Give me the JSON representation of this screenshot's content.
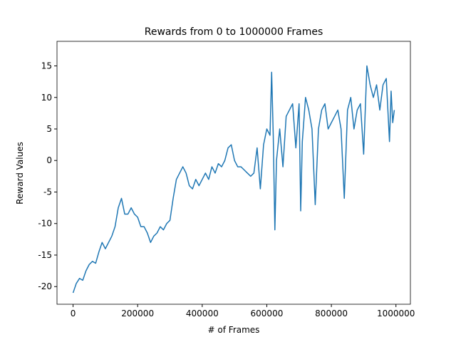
{
  "chart_data": {
    "type": "line",
    "title": "Rewards from 0 to 1000000 Frames",
    "xlabel": "# of Frames",
    "ylabel": "Reward Values",
    "x": [
      0,
      10000,
      20000,
      30000,
      40000,
      50000,
      60000,
      70000,
      80000,
      90000,
      100000,
      110000,
      120000,
      130000,
      140000,
      150000,
      160000,
      170000,
      180000,
      190000,
      200000,
      210000,
      220000,
      230000,
      240000,
      250000,
      260000,
      270000,
      280000,
      290000,
      300000,
      310000,
      320000,
      330000,
      340000,
      350000,
      360000,
      370000,
      380000,
      390000,
      400000,
      410000,
      420000,
      430000,
      440000,
      450000,
      460000,
      470000,
      480000,
      490000,
      500000,
      510000,
      520000,
      530000,
      540000,
      550000,
      560000,
      570000,
      580000,
      590000,
      600000,
      610000,
      615000,
      620000,
      625000,
      630000,
      640000,
      650000,
      660000,
      670000,
      680000,
      690000,
      700000,
      705000,
      710000,
      720000,
      730000,
      740000,
      750000,
      760000,
      770000,
      780000,
      790000,
      800000,
      810000,
      820000,
      830000,
      840000,
      850000,
      860000,
      870000,
      880000,
      890000,
      900000,
      910000,
      920000,
      930000,
      940000,
      950000,
      960000,
      970000,
      980000,
      985000,
      990000,
      995000
    ],
    "series": [
      {
        "name": "Rewards",
        "color": "#1f77b4",
        "values": [
          -21,
          -19.5,
          -18.7,
          -19,
          -17.5,
          -16.5,
          -16,
          -16.3,
          -14.5,
          -13,
          -14,
          -13,
          -12,
          -10.5,
          -7.5,
          -6,
          -8.5,
          -8.5,
          -7.5,
          -8.5,
          -9,
          -10.5,
          -10.5,
          -11.5,
          -13,
          -12,
          -11.5,
          -10.5,
          -11,
          -10,
          -9.5,
          -6,
          -3,
          -2,
          -1,
          -2,
          -4,
          -4.5,
          -3,
          -4,
          -3,
          -2,
          -3,
          -1,
          -2,
          -0.5,
          -1,
          0,
          2,
          2.5,
          0,
          -1,
          -1,
          -1.5,
          -2,
          -2.5,
          -2,
          2,
          -4.5,
          2.5,
          5,
          4,
          14,
          4,
          -11,
          0,
          5,
          -1,
          7,
          8,
          9,
          2,
          9,
          -8,
          3,
          10,
          8,
          5,
          -7,
          5,
          8,
          9,
          5,
          6,
          7,
          8,
          5,
          -6,
          8,
          10,
          5,
          8,
          9,
          1,
          15,
          12,
          10,
          12,
          8,
          12,
          13,
          3,
          11,
          6,
          8
        ]
      }
    ],
    "xlim": [
      -49750,
      1044750
    ],
    "ylim": [
      -22.8,
      18.9
    ],
    "xticks": [
      0,
      200000,
      400000,
      600000,
      800000,
      1000000
    ],
    "yticks": [
      -20,
      -15,
      -10,
      -5,
      0,
      5,
      10,
      15
    ]
  }
}
